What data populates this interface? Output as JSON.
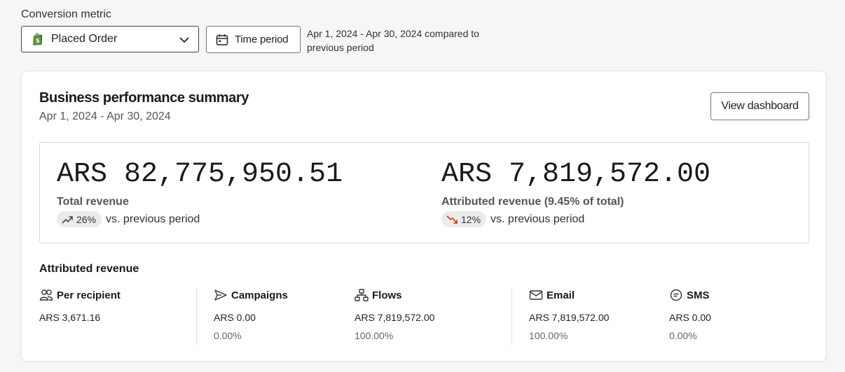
{
  "conversion": {
    "label": "Conversion metric",
    "selected": "Placed Order",
    "time_button": "Time period",
    "period_description": "Apr 1, 2024 - Apr 30, 2024 compared to previous period"
  },
  "summary": {
    "title": "Business performance summary",
    "date_range": "Apr 1, 2024 - Apr 30, 2024",
    "view_button": "View dashboard",
    "total": {
      "value": "ARS 82,775,950.51",
      "label": "Total revenue",
      "change": "26%",
      "change_direction": "up",
      "compare_text": "vs. previous period"
    },
    "attributed": {
      "value": "ARS 7,819,572.00",
      "label": "Attributed revenue (9.45% of total)",
      "change": "12%",
      "change_direction": "down",
      "compare_text": "vs. previous period"
    }
  },
  "attributed_revenue": {
    "title": "Attributed revenue",
    "per_recipient": {
      "label": "Per recipient",
      "value": "ARS 3,671.16"
    },
    "campaigns": {
      "label": "Campaigns",
      "value": "ARS 0.00",
      "percent": "0.00%"
    },
    "flows": {
      "label": "Flows",
      "value": "ARS 7,819,572.00",
      "percent": "100.00%"
    },
    "email": {
      "label": "Email",
      "value": "ARS 7,819,572.00",
      "percent": "100.00%"
    },
    "sms": {
      "label": "SMS",
      "value": "ARS 0.00",
      "percent": "0.00%"
    }
  },
  "colors": {
    "shopify_green": "#5e8e3e",
    "trend_down": "#d72c0d",
    "pill_bg": "#ebebeb"
  }
}
